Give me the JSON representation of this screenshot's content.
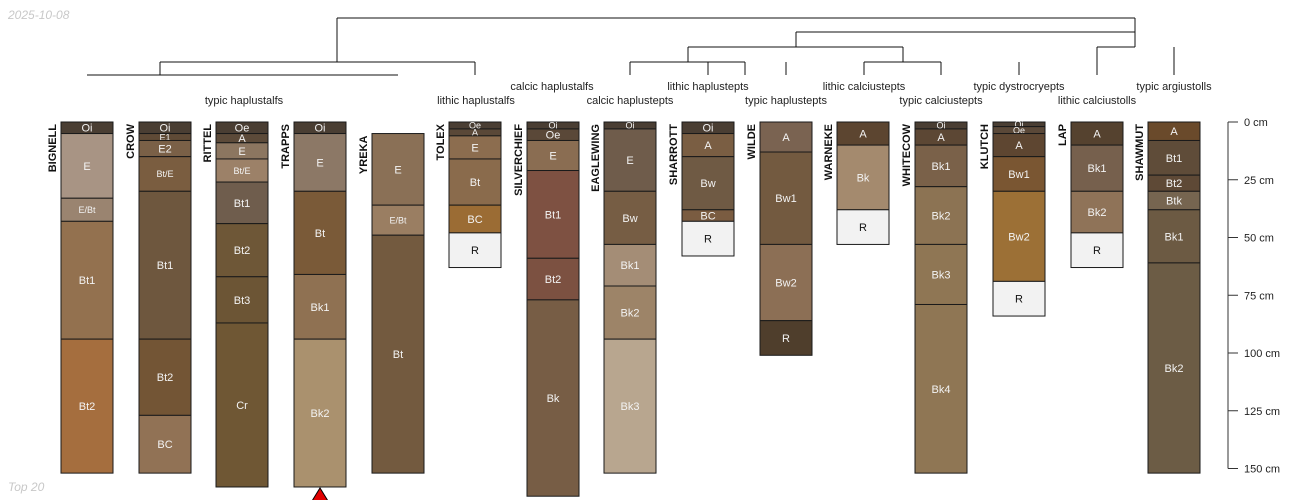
{
  "header": {
    "date": "2025-10-08"
  },
  "footer": {
    "label": "Top 20"
  },
  "chart_data": {
    "type": "soil-profile-sketch",
    "depth_axis": {
      "units": "cm",
      "max": 150,
      "ticks": [
        0,
        25,
        50,
        75,
        100,
        125,
        150
      ],
      "tick_labels": [
        "0 cm",
        "25 cm",
        "50 cm",
        "75 cm",
        "100 cm",
        "125 cm",
        "150 cm"
      ]
    },
    "taxa_labels": [
      {
        "text": "typic haplustalfs",
        "level": "low"
      },
      {
        "text": "calcic haplustalfs",
        "level": "high"
      },
      {
        "text": "lithic haplustalfs",
        "level": "low"
      },
      {
        "text": "calcic haplustepts",
        "level": "low"
      },
      {
        "text": "lithic haplustepts",
        "level": "high"
      },
      {
        "text": "typic haplustepts",
        "level": "low"
      },
      {
        "text": "lithic calciustepts",
        "level": "high"
      },
      {
        "text": "typic calciustepts",
        "level": "low"
      },
      {
        "text": "typic dystrocryepts",
        "level": "high"
      },
      {
        "text": "lithic calciustolls",
        "level": "low"
      },
      {
        "text": "typic argiustolls",
        "level": "high"
      }
    ],
    "profiles": [
      {
        "name": "BIGNELL",
        "horizons": [
          {
            "name": "Oi",
            "top": 0,
            "bottom": 5,
            "color": "#4a3e33"
          },
          {
            "name": "E",
            "top": 5,
            "bottom": 33,
            "color": "#a89484"
          },
          {
            "name": "E/Bt",
            "top": 33,
            "bottom": 43,
            "color": "#9a8470"
          },
          {
            "name": "Bt1",
            "top": 43,
            "bottom": 94,
            "color": "#93714f"
          },
          {
            "name": "Bt2",
            "top": 94,
            "bottom": 152,
            "color": "#a56e3e"
          }
        ]
      },
      {
        "name": "CROW",
        "horizons": [
          {
            "name": "Oi",
            "top": 0,
            "bottom": 5,
            "color": "#4a3e33"
          },
          {
            "name": "E1",
            "top": 5,
            "bottom": 8,
            "color": "#5f4a36"
          },
          {
            "name": "E2",
            "top": 8,
            "bottom": 15,
            "color": "#7a6047"
          },
          {
            "name": "Bt/E",
            "top": 15,
            "bottom": 30,
            "color": "#7a5d40"
          },
          {
            "name": "Bt1",
            "top": 30,
            "bottom": 94,
            "color": "#6e573e"
          },
          {
            "name": "Bt2",
            "top": 94,
            "bottom": 127,
            "color": "#735535"
          },
          {
            "name": "BC",
            "top": 127,
            "bottom": 152,
            "color": "#917255"
          }
        ]
      },
      {
        "name": "RITTEL",
        "horizons": [
          {
            "name": "Oe",
            "top": 0,
            "bottom": 5,
            "color": "#4a3e33"
          },
          {
            "name": "A",
            "top": 5,
            "bottom": 9,
            "color": "#5c4a39"
          },
          {
            "name": "E",
            "top": 9,
            "bottom": 16,
            "color": "#8c7660"
          },
          {
            "name": "Bt/E",
            "top": 16,
            "bottom": 26,
            "color": "#9c8168"
          },
          {
            "name": "Bt1",
            "top": 26,
            "bottom": 44,
            "color": "#6f5d4d"
          },
          {
            "name": "Bt2",
            "top": 44,
            "bottom": 67,
            "color": "#6e5737"
          },
          {
            "name": "Bt3",
            "top": 67,
            "bottom": 87,
            "color": "#6c5535"
          },
          {
            "name": "Cr",
            "top": 87,
            "bottom": 158,
            "color": "#6f5734"
          }
        ]
      },
      {
        "name": "TRAPPS",
        "truncated": true,
        "horizons": [
          {
            "name": "Oi",
            "top": 0,
            "bottom": 5,
            "color": "#4a3e33"
          },
          {
            "name": "E",
            "top": 5,
            "bottom": 30,
            "color": "#8c7866"
          },
          {
            "name": "Bt",
            "top": 30,
            "bottom": 66,
            "color": "#7a5a38"
          },
          {
            "name": "Bk1",
            "top": 66,
            "bottom": 94,
            "color": "#8f7152"
          },
          {
            "name": "Bk2",
            "top": 94,
            "bottom": 158,
            "color": "#aa916e"
          }
        ]
      },
      {
        "name": "YREKA",
        "horizons": [
          {
            "name": "E",
            "top": 5,
            "bottom": 36,
            "color": "#8a7056"
          },
          {
            "name": "E/Bt",
            "top": 36,
            "bottom": 49,
            "color": "#9a7e62"
          },
          {
            "name": "Bt",
            "top": 49,
            "bottom": 152,
            "color": "#735a3f"
          }
        ]
      },
      {
        "name": "TOLEX",
        "horizons": [
          {
            "name": "Oe",
            "top": 0,
            "bottom": 3,
            "color": "#4a3e33"
          },
          {
            "name": "A",
            "top": 3,
            "bottom": 6,
            "color": "#5a4838"
          },
          {
            "name": "E",
            "top": 6,
            "bottom": 16,
            "color": "#8c6d4f"
          },
          {
            "name": "Bt",
            "top": 16,
            "bottom": 36,
            "color": "#8a6b4c"
          },
          {
            "name": "BC",
            "top": 36,
            "bottom": 48,
            "color": "#9b6c34"
          },
          {
            "name": "R",
            "top": 48,
            "bottom": 63,
            "color": "#f2f2f2"
          }
        ]
      },
      {
        "name": "SILVERCHIEF",
        "horizons": [
          {
            "name": "Oi",
            "top": 0,
            "bottom": 3,
            "color": "#4a3e33"
          },
          {
            "name": "Oe",
            "top": 3,
            "bottom": 8,
            "color": "#5a4838"
          },
          {
            "name": "E",
            "top": 8,
            "bottom": 21,
            "color": "#8a6d52"
          },
          {
            "name": "Bt1",
            "top": 21,
            "bottom": 59,
            "color": "#7e5142"
          },
          {
            "name": "Bt2",
            "top": 59,
            "bottom": 77,
            "color": "#7c5141"
          },
          {
            "name": "Bk",
            "top": 77,
            "bottom": 162,
            "color": "#775d45"
          }
        ]
      },
      {
        "name": "EAGLEWING",
        "horizons": [
          {
            "name": "Oi",
            "top": 0,
            "bottom": 3,
            "color": "#4a3e33"
          },
          {
            "name": "E",
            "top": 3,
            "bottom": 30,
            "color": "#6f5c4b"
          },
          {
            "name": "Bw",
            "top": 30,
            "bottom": 53,
            "color": "#765d44"
          },
          {
            "name": "Bk1",
            "top": 53,
            "bottom": 71,
            "color": "#a48d76"
          },
          {
            "name": "Bk2",
            "top": 71,
            "bottom": 94,
            "color": "#9d8468"
          },
          {
            "name": "Bk3",
            "top": 94,
            "bottom": 152,
            "color": "#b8a68f"
          }
        ]
      },
      {
        "name": "SHARROTT",
        "horizons": [
          {
            "name": "Oi",
            "top": 0,
            "bottom": 5,
            "color": "#4a3e33"
          },
          {
            "name": "A",
            "top": 5,
            "bottom": 15,
            "color": "#7a5e43"
          },
          {
            "name": "Bw",
            "top": 15,
            "bottom": 38,
            "color": "#6f5a44"
          },
          {
            "name": "BC",
            "top": 38,
            "bottom": 43,
            "color": "#7a5c41"
          },
          {
            "name": "R",
            "top": 43,
            "bottom": 58,
            "color": "#f2f2f2"
          }
        ]
      },
      {
        "name": "WILDE",
        "horizons": [
          {
            "name": "A",
            "top": 0,
            "bottom": 13,
            "color": "#7a6351"
          },
          {
            "name": "Bw1",
            "top": 13,
            "bottom": 53,
            "color": "#735a40"
          },
          {
            "name": "Bw2",
            "top": 53,
            "bottom": 86,
            "color": "#8c6f55"
          },
          {
            "name": "R",
            "top": 86,
            "bottom": 101,
            "color": "#4f3e2c"
          }
        ]
      },
      {
        "name": "WARNEKE",
        "horizons": [
          {
            "name": "A",
            "top": 0,
            "bottom": 10,
            "color": "#5c4530"
          },
          {
            "name": "Bk",
            "top": 10,
            "bottom": 38,
            "color": "#a48a6e"
          },
          {
            "name": "R",
            "top": 38,
            "bottom": 53,
            "color": "#f2f2f2"
          }
        ]
      },
      {
        "name": "WHITECOW",
        "horizons": [
          {
            "name": "Oi",
            "top": 0,
            "bottom": 3,
            "color": "#4a3e33"
          },
          {
            "name": "A",
            "top": 3,
            "bottom": 10,
            "color": "#5c4734"
          },
          {
            "name": "Bk1",
            "top": 10,
            "bottom": 28,
            "color": "#7a6149"
          },
          {
            "name": "Bk2",
            "top": 28,
            "bottom": 53,
            "color": "#8c7353"
          },
          {
            "name": "Bk3",
            "top": 53,
            "bottom": 79,
            "color": "#8f7654"
          },
          {
            "name": "Bk4",
            "top": 79,
            "bottom": 152,
            "color": "#8f7654"
          }
        ]
      },
      {
        "name": "KLUTCH",
        "horizons": [
          {
            "name": "Oi",
            "top": 0,
            "bottom": 2,
            "color": "#4a3e33"
          },
          {
            "name": "Oe",
            "top": 2,
            "bottom": 5,
            "color": "#5a4838"
          },
          {
            "name": "A",
            "top": 5,
            "bottom": 15,
            "color": "#5e4631"
          },
          {
            "name": "Bw1",
            "top": 15,
            "bottom": 30,
            "color": "#7a5632"
          },
          {
            "name": "Bw2",
            "top": 30,
            "bottom": 69,
            "color": "#9c7036"
          },
          {
            "name": "R",
            "top": 69,
            "bottom": 84,
            "color": "#f2f2f2"
          }
        ]
      },
      {
        "name": "LAP",
        "horizons": [
          {
            "name": "A",
            "top": 0,
            "bottom": 10,
            "color": "#55422f"
          },
          {
            "name": "Bk1",
            "top": 10,
            "bottom": 30,
            "color": "#76604d"
          },
          {
            "name": "Bk2",
            "top": 30,
            "bottom": 48,
            "color": "#8f7358"
          },
          {
            "name": "R",
            "top": 48,
            "bottom": 63,
            "color": "#f2f2f2"
          }
        ]
      },
      {
        "name": "SHAWMUT",
        "horizons": [
          {
            "name": "A",
            "top": 0,
            "bottom": 8,
            "color": "#6a4a2b"
          },
          {
            "name": "Bt1",
            "top": 8,
            "bottom": 23,
            "color": "#5f4c39"
          },
          {
            "name": "Bt2",
            "top": 23,
            "bottom": 30,
            "color": "#5e4936"
          },
          {
            "name": "Btk",
            "top": 30,
            "bottom": 38,
            "color": "#766550"
          },
          {
            "name": "Bk1",
            "top": 38,
            "bottom": 61,
            "color": "#6c5a43"
          },
          {
            "name": "Bk2",
            "top": 61,
            "bottom": 152,
            "color": "#6c5c45"
          }
        ]
      }
    ]
  }
}
